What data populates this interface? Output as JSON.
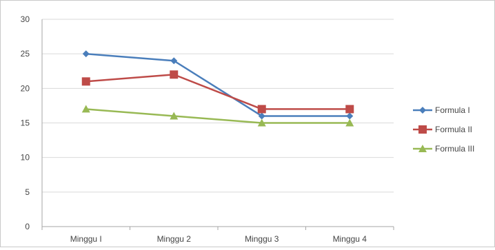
{
  "chart_data": {
    "type": "line",
    "categories": [
      "Minggu I",
      "Minggu 2",
      "Minggu 3",
      "Minggu 4"
    ],
    "ylim": [
      0,
      30
    ],
    "yticks": [
      0,
      5,
      10,
      15,
      20,
      25,
      30
    ],
    "grid": true,
    "legend_position": "right",
    "series": [
      {
        "name": "Formula I",
        "values": [
          25,
          24,
          16,
          16
        ],
        "color": "#4a7ebb",
        "marker": "diamond"
      },
      {
        "name": "Formula II",
        "values": [
          21,
          22,
          17,
          17
        ],
        "color": "#be4b48",
        "marker": "square"
      },
      {
        "name": "Formula III",
        "values": [
          17,
          16,
          15,
          15
        ],
        "color": "#98b954",
        "marker": "triangle"
      }
    ]
  }
}
